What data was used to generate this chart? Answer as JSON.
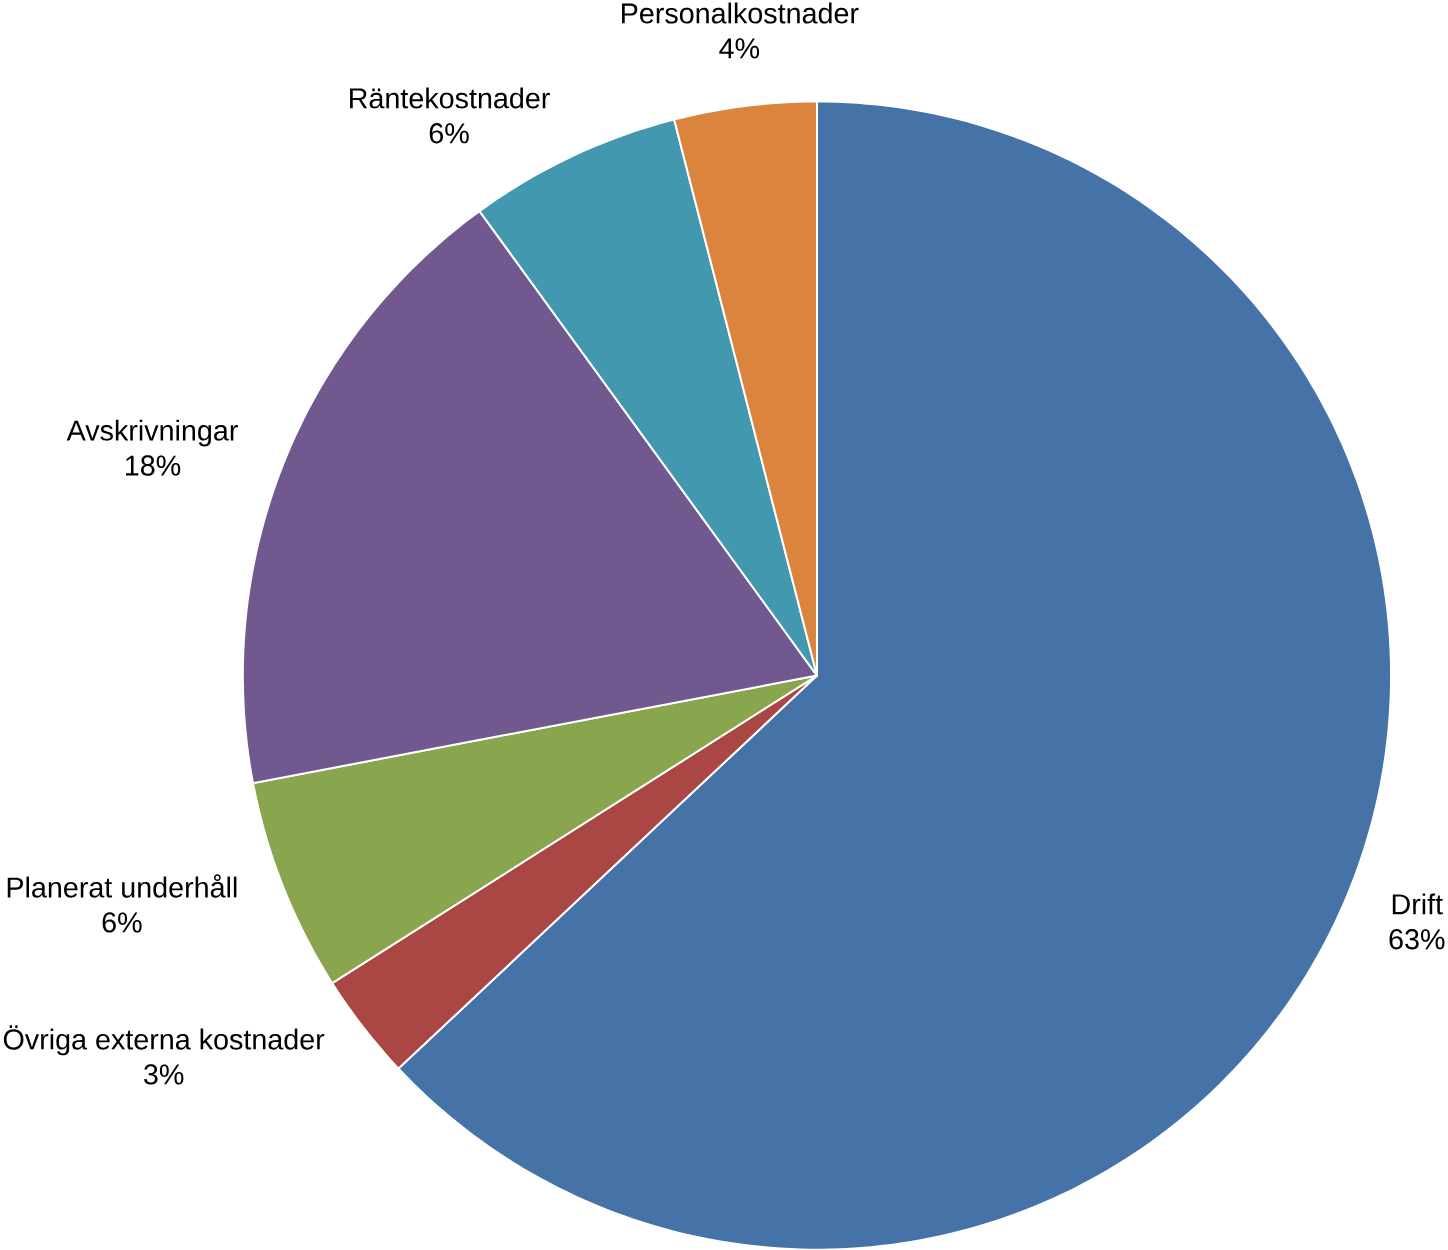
{
  "chart_data": {
    "type": "pie",
    "categories": [
      "Drift",
      "Övriga externa kostnader",
      "Planerat underhåll",
      "Avskrivningar",
      "Räntekostnader",
      "Personalkostnader"
    ],
    "values": [
      63,
      3,
      6,
      18,
      6,
      4
    ],
    "value_labels": [
      "63%",
      "3%",
      "6%",
      "18%",
      "6%",
      "4%"
    ],
    "colors": [
      "#4572a7",
      "#aa4643",
      "#89a54e",
      "#71588f",
      "#4198af",
      "#db843d"
    ]
  }
}
